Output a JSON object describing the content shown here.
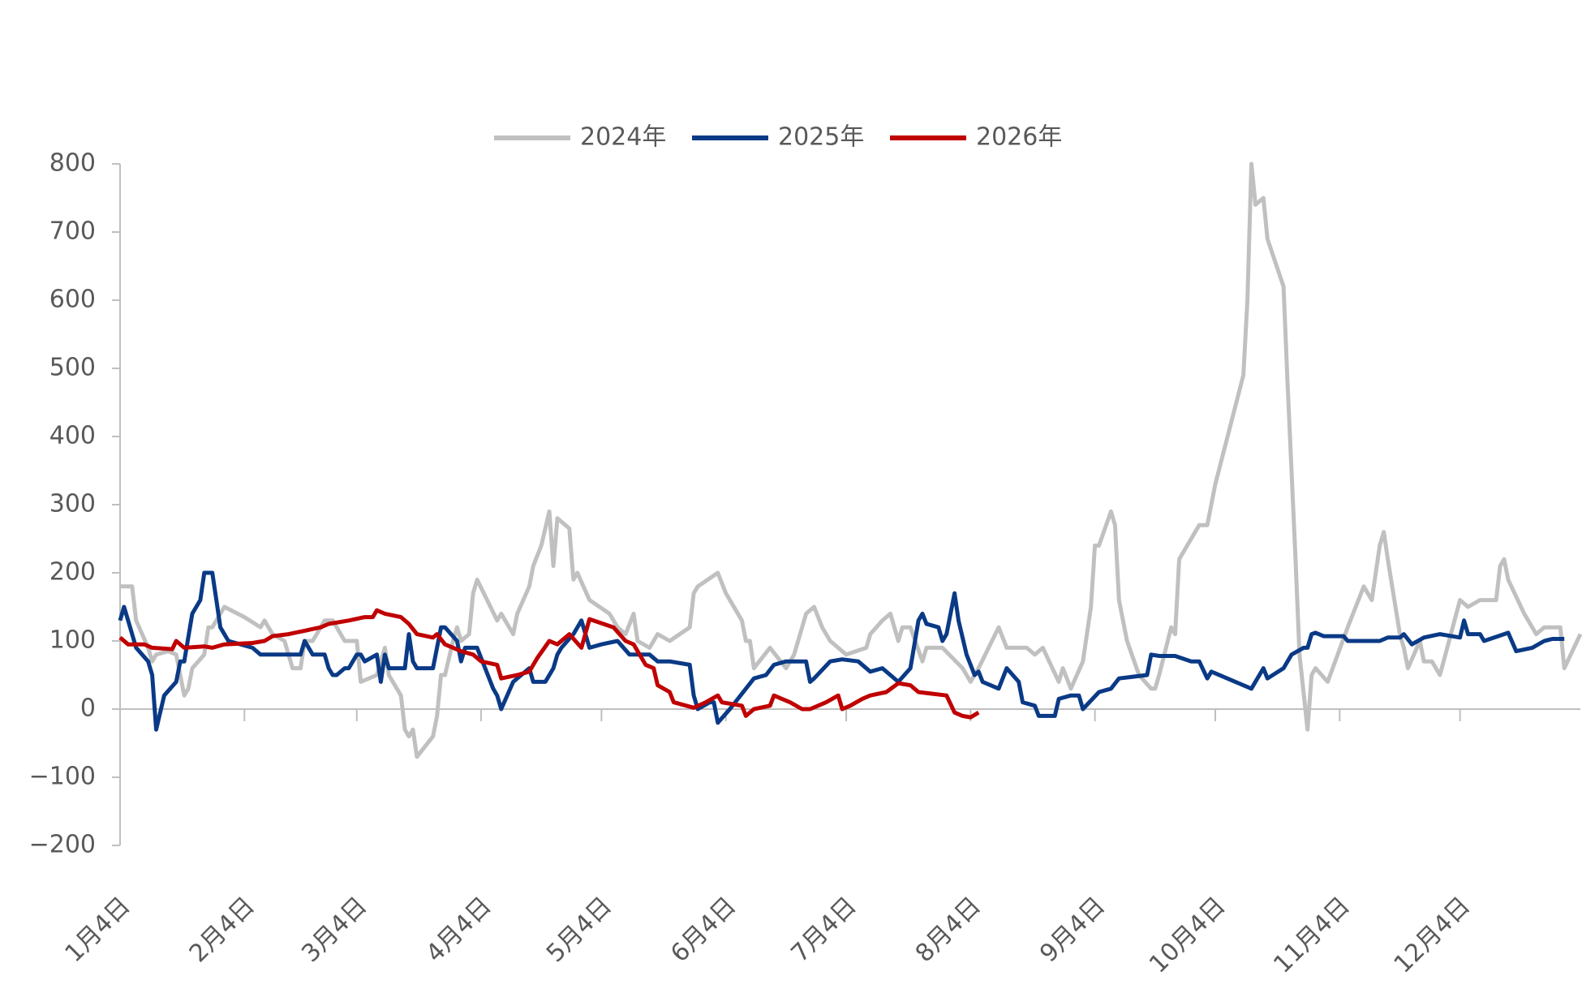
{
  "chart_data": {
    "type": "line",
    "xlim": [
      0,
      364
    ],
    "xticks": [
      {
        "value": 0,
        "label": "1月4日"
      },
      {
        "value": 31,
        "label": "2月4日"
      },
      {
        "value": 59,
        "label": "3月4日"
      },
      {
        "value": 90,
        "label": "4月4日"
      },
      {
        "value": 120,
        "label": "5月4日"
      },
      {
        "value": 151,
        "label": "6月4日"
      },
      {
        "value": 181,
        "label": "7月4日"
      },
      {
        "value": 212,
        "label": "8月4日"
      },
      {
        "value": 243,
        "label": "9月4日"
      },
      {
        "value": 273,
        "label": "10月4日"
      },
      {
        "value": 304,
        "label": "11月4日"
      },
      {
        "value": 334,
        "label": "12月4日"
      }
    ],
    "ylim": [
      -200,
      800
    ],
    "yticks": [
      {
        "value": -200,
        "label": "−200"
      },
      {
        "value": -100,
        "label": "−100"
      },
      0,
      100,
      200,
      300,
      400,
      500,
      600,
      700,
      800
    ],
    "legend": "top",
    "series": [
      {
        "name": "2024年",
        "color": "#c0c0c0",
        "x": [
          0,
          3,
          4,
          7,
          8,
          9,
          12,
          14,
          16,
          17,
          18,
          21,
          22,
          23,
          26,
          31,
          35,
          36,
          38,
          41,
          43,
          45,
          46,
          48,
          51,
          53,
          56,
          59,
          60,
          64,
          66,
          67,
          70,
          71,
          72,
          73,
          74,
          78,
          79,
          80,
          81,
          83,
          84,
          85,
          87,
          88,
          89,
          94,
          95,
          98,
          99,
          102,
          103,
          105,
          107,
          108,
          109,
          112,
          113,
          114,
          117,
          122,
          124,
          126,
          128,
          129,
          132,
          134,
          137,
          142,
          143,
          144,
          149,
          151,
          155,
          156,
          157,
          158,
          162,
          166,
          168,
          170,
          171,
          173,
          175,
          177,
          181,
          186,
          187,
          190,
          192,
          194,
          195,
          197,
          200,
          201,
          205,
          210,
          212,
          214,
          219,
          221,
          226,
          228,
          230,
          234,
          235,
          237,
          240,
          242,
          243,
          244,
          247,
          248,
          249,
          251,
          254,
          257,
          258,
          259,
          262,
          263,
          264,
          269,
          271,
          273,
          280,
          281,
          282,
          283,
          285,
          286,
          290,
          291,
          293,
          294,
          296,
          297,
          298,
          301,
          306,
          310,
          312,
          314,
          315,
          316,
          319,
          320,
          321,
          324,
          325,
          327,
          329,
          334,
          336,
          339,
          343,
          344,
          345,
          346,
          350,
          353,
          355,
          359,
          360,
          364
        ],
        "values": [
          180,
          180,
          130,
          90,
          70,
          80,
          85,
          80,
          20,
          30,
          60,
          80,
          120,
          120,
          150,
          135,
          120,
          130,
          110,
          100,
          60,
          60,
          100,
          100,
          130,
          130,
          100,
          100,
          40,
          50,
          90,
          50,
          20,
          -30,
          -40,
          -30,
          -70,
          -40,
          -10,
          50,
          50,
          100,
          120,
          100,
          110,
          170,
          190,
          130,
          140,
          110,
          140,
          180,
          210,
          240,
          290,
          210,
          280,
          265,
          190,
          200,
          160,
          140,
          120,
          110,
          140,
          100,
          90,
          110,
          100,
          120,
          170,
          180,
          200,
          170,
          130,
          100,
          100,
          60,
          90,
          60,
          80,
          120,
          140,
          150,
          120,
          100,
          80,
          90,
          110,
          130,
          140,
          100,
          120,
          120,
          70,
          90,
          90,
          60,
          40,
          60,
          120,
          90,
          90,
          80,
          90,
          40,
          60,
          30,
          70,
          150,
          240,
          240,
          290,
          270,
          160,
          100,
          50,
          30,
          30,
          50,
          120,
          110,
          220,
          270,
          270,
          330,
          490,
          600,
          800,
          740,
          750,
          690,
          620,
          480,
          220,
          80,
          -30,
          50,
          60,
          40,
          120,
          180,
          160,
          240,
          260,
          220,
          110,
          90,
          60,
          100,
          70,
          70,
          50,
          160,
          150,
          160,
          160,
          210,
          220,
          190,
          140,
          110,
          120,
          120,
          60,
          110
        ]
      },
      {
        "name": "2025年",
        "color": "#0a3a86",
        "x": [
          0,
          1,
          2,
          4,
          7,
          8,
          9,
          11,
          14,
          15,
          16,
          18,
          20,
          21,
          23,
          24,
          25,
          27,
          33,
          35,
          45,
          46,
          48,
          51,
          52,
          53,
          54,
          56,
          57,
          59,
          60,
          61,
          64,
          65,
          66,
          67,
          71,
          72,
          73,
          74,
          78,
          80,
          81,
          84,
          85,
          86,
          89,
          91,
          93,
          94,
          95,
          98,
          102,
          103,
          106,
          108,
          109,
          110,
          113,
          115,
          117,
          120,
          124,
          127,
          132,
          134,
          137,
          142,
          143,
          144,
          147,
          148,
          149,
          152,
          156,
          158,
          161,
          163,
          166,
          171,
          172,
          173,
          177,
          180,
          184,
          187,
          190,
          194,
          197,
          199,
          200,
          201,
          204,
          205,
          206,
          208,
          209,
          211,
          213,
          214,
          215,
          219,
          221,
          224,
          225,
          228,
          229,
          233,
          234,
          237,
          239,
          240,
          244,
          247,
          249,
          256,
          257,
          259,
          263,
          267,
          269,
          271,
          272,
          282,
          285,
          286,
          290,
          292,
          295,
          296,
          297,
          298,
          300,
          305,
          306,
          314,
          316,
          319,
          320,
          322,
          325,
          329,
          334,
          335,
          336,
          339,
          340,
          345,
          346,
          348,
          352,
          355,
          357,
          360
        ],
        "values": [
          130,
          150,
          130,
          90,
          70,
          50,
          -30,
          20,
          40,
          70,
          70,
          140,
          160,
          200,
          200,
          160,
          120,
          100,
          90,
          80,
          80,
          100,
          80,
          80,
          60,
          50,
          50,
          60,
          60,
          80,
          80,
          70,
          80,
          40,
          80,
          60,
          60,
          110,
          70,
          60,
          60,
          120,
          120,
          100,
          70,
          90,
          90,
          60,
          30,
          20,
          0,
          40,
          60,
          40,
          40,
          60,
          80,
          90,
          110,
          130,
          90,
          95,
          100,
          80,
          80,
          70,
          70,
          65,
          20,
          0,
          10,
          10,
          -20,
          0,
          30,
          45,
          50,
          65,
          70,
          70,
          40,
          45,
          70,
          73,
          70,
          55,
          60,
          40,
          60,
          130,
          140,
          125,
          120,
          100,
          110,
          170,
          130,
          80,
          50,
          55,
          40,
          30,
          60,
          40,
          10,
          5,
          -10,
          -10,
          15,
          20,
          20,
          0,
          25,
          30,
          45,
          50,
          80,
          78,
          78,
          70,
          70,
          45,
          55,
          30,
          60,
          45,
          60,
          80,
          90,
          90,
          110,
          112,
          107,
          107,
          100,
          100,
          105,
          105,
          110,
          95,
          105,
          110,
          105,
          130,
          110,
          110,
          100,
          110,
          112,
          85,
          90,
          100,
          103,
          103
        ]
      },
      {
        "name": "2026年",
        "color": "#c00000",
        "x": [
          0,
          2,
          6,
          8,
          13,
          14,
          16,
          21,
          23,
          26,
          33,
          36,
          38,
          42,
          46,
          50,
          52,
          57,
          61,
          63,
          64,
          66,
          70,
          72,
          74,
          78,
          79,
          81,
          85,
          88,
          90,
          94,
          95,
          99,
          102,
          104,
          107,
          109,
          112,
          115,
          117,
          123,
          126,
          128,
          131,
          133,
          134,
          137,
          138,
          143,
          146,
          149,
          150,
          155,
          156,
          158,
          162,
          163,
          165,
          167,
          170,
          172,
          176,
          179,
          180,
          182,
          185,
          187,
          191,
          194,
          197,
          199,
          206,
          208,
          210,
          212,
          214
        ],
        "values": [
          105,
          95,
          95,
          90,
          88,
          100,
          90,
          92,
          90,
          95,
          97,
          100,
          107,
          110,
          115,
          120,
          125,
          130,
          135,
          135,
          145,
          140,
          135,
          125,
          110,
          105,
          110,
          95,
          85,
          80,
          70,
          65,
          45,
          50,
          55,
          75,
          100,
          95,
          110,
          90,
          132,
          120,
          100,
          95,
          65,
          60,
          35,
          25,
          10,
          2,
          10,
          20,
          10,
          5,
          -10,
          0,
          5,
          20,
          15,
          10,
          0,
          0,
          10,
          20,
          0,
          5,
          15,
          20,
          25,
          38,
          35,
          25,
          20,
          -5,
          -10,
          -12,
          -5
        ]
      }
    ]
  }
}
